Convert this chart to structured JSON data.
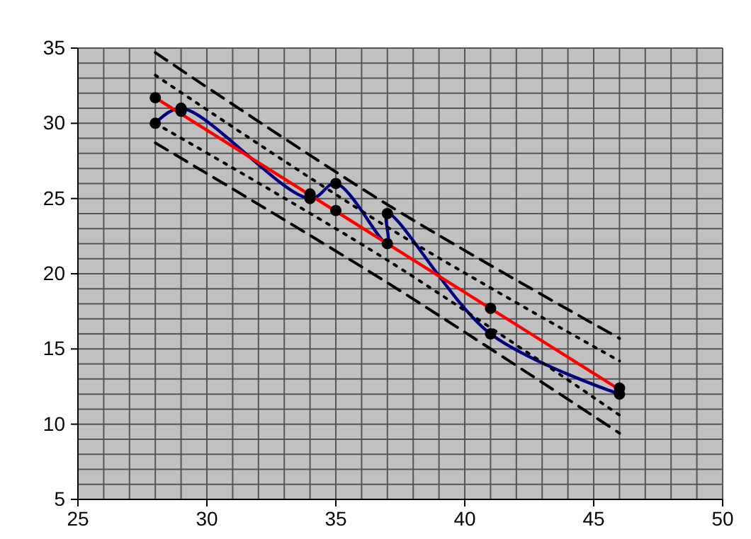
{
  "chart_data": {
    "type": "scatter",
    "xlim": [
      25,
      50
    ],
    "ylim": [
      5,
      35
    ],
    "xticks": [
      25,
      {
        "value": 26,
        "label": null
      },
      {
        "value": 27,
        "label": null
      },
      {
        "value": 28,
        "label": null
      },
      {
        "value": 29,
        "label": null
      },
      30,
      {
        "value": 31,
        "label": null
      },
      {
        "value": 32,
        "label": null
      },
      {
        "value": 33,
        "label": null
      },
      {
        "value": 34,
        "label": null
      },
      35,
      {
        "value": 36,
        "label": null
      },
      {
        "value": 37,
        "label": null
      },
      {
        "value": 38,
        "label": null
      },
      {
        "value": 39,
        "label": null
      },
      40,
      {
        "value": 41,
        "label": null
      },
      {
        "value": 42,
        "label": null
      },
      {
        "value": 43,
        "label": null
      },
      {
        "value": 44,
        "label": null
      },
      45,
      {
        "value": 46,
        "label": null
      },
      {
        "value": 47,
        "label": null
      },
      {
        "value": 48,
        "label": null
      },
      {
        "value": 49,
        "label": null
      },
      50
    ],
    "yticks": [
      5,
      {
        "value": 6,
        "label": null
      },
      {
        "value": 7,
        "label": null
      },
      {
        "value": 8,
        "label": null
      },
      {
        "value": 9,
        "label": null
      },
      10,
      {
        "value": 11,
        "label": null
      },
      {
        "value": 12,
        "label": null
      },
      {
        "value": 13,
        "label": null
      },
      {
        "value": 14,
        "label": null
      },
      15,
      {
        "value": 16,
        "label": null
      },
      {
        "value": 17,
        "label": null
      },
      {
        "value": 18,
        "label": null
      },
      {
        "value": 19,
        "label": null
      },
      20,
      {
        "value": 21,
        "label": null
      },
      {
        "value": 22,
        "label": null
      },
      {
        "value": 23,
        "label": null
      },
      {
        "value": 24,
        "label": null
      },
      25,
      {
        "value": 26,
        "label": null
      },
      {
        "value": 27,
        "label": null
      },
      {
        "value": 28,
        "label": null
      },
      {
        "value": 29,
        "label": null
      },
      30,
      {
        "value": 31,
        "label": null
      },
      {
        "value": 32,
        "label": null
      },
      {
        "value": 33,
        "label": null
      },
      {
        "value": 34,
        "label": null
      },
      35
    ],
    "grid": true,
    "series": [
      {
        "type": "line",
        "color": "#000080",
        "line_style": "solid",
        "marker": "none",
        "x": [
          28,
          29,
          34,
          35,
          37,
          37,
          41,
          46
        ],
        "values": [
          30,
          31,
          25,
          26,
          22,
          24,
          16,
          12
        ]
      },
      {
        "type": "line",
        "color": "#000000",
        "line_style": "dashed",
        "marker": "none",
        "x": [
          28,
          37,
          46
        ],
        "values": [
          34.7,
          24.6,
          15.7
        ]
      },
      {
        "type": "line",
        "color": "#000000",
        "line_style": "dashed",
        "marker": "none",
        "x": [
          28,
          37,
          46
        ],
        "values": [
          28.7,
          19.4,
          9.4
        ]
      },
      {
        "type": "line",
        "color": "#000000",
        "line_style": "dotted",
        "marker": "none",
        "x": [
          28,
          37,
          46
        ],
        "values": [
          33.2,
          23.1,
          14.2
        ]
      },
      {
        "type": "line",
        "color": "#000000",
        "line_style": "dotted",
        "marker": "none",
        "x": [
          28,
          37,
          46
        ],
        "values": [
          30.0,
          20.9,
          10.6
        ]
      },
      {
        "type": "line",
        "color": "#ff0000",
        "line_style": "solid",
        "marker": "none",
        "x": [
          28,
          46
        ],
        "values": [
          31.7,
          12.3
        ]
      },
      {
        "color": "#000000",
        "marker": "circle",
        "x": [
          28,
          28,
          29,
          29,
          34,
          34,
          35,
          35,
          37,
          37,
          41,
          41,
          46,
          46
        ],
        "values": [
          31.7,
          30,
          30.8,
          31,
          25.3,
          25,
          26,
          24.2,
          24,
          22,
          17.7,
          16,
          12.4,
          12
        ]
      }
    ]
  }
}
